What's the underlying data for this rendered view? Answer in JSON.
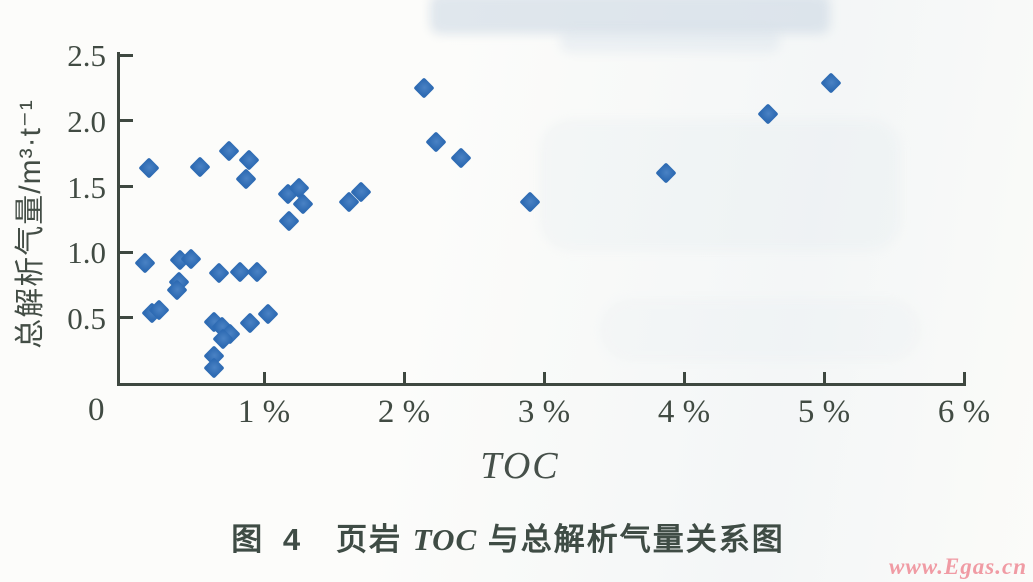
{
  "figure": {
    "caption": {
      "fig_label": "图 4",
      "title_pre": "页岩 ",
      "title_italic": "TOC",
      "title_post": " 与总解析气量关系图"
    },
    "watermark": "www.Egas.cn"
  },
  "chart_data": {
    "type": "scatter",
    "title": "页岩 TOC 与总解析气量关系图",
    "xlabel": "TOC",
    "ylabel": "总解析气量/m³·t⁻¹",
    "xlim": [
      0,
      6
    ],
    "ylim": [
      0,
      2.5
    ],
    "grid": false,
    "legend": "none",
    "origin_label": "0",
    "x_ticks": [
      1,
      2,
      3,
      4,
      5,
      6
    ],
    "x_tick_labels": [
      "1 %",
      "2 %",
      "3 %",
      "4 %",
      "5 %",
      "6 %"
    ],
    "y_ticks": [
      0.5,
      1.0,
      1.5,
      2.0,
      2.5
    ],
    "y_tick_labels": [
      "0.5",
      "1.0",
      "1.5",
      "2.0",
      "2.5"
    ],
    "marker": "diamond",
    "marker_color": "#2e6bb3",
    "axis_color": "#3e4840",
    "points": [
      [
        0.18,
        1.64
      ],
      [
        0.54,
        1.65
      ],
      [
        0.75,
        1.77
      ],
      [
        0.89,
        1.7
      ],
      [
        0.87,
        1.56
      ],
      [
        0.15,
        0.92
      ],
      [
        0.4,
        0.94
      ],
      [
        0.48,
        0.95
      ],
      [
        0.39,
        0.77
      ],
      [
        0.38,
        0.71
      ],
      [
        0.68,
        0.84
      ],
      [
        0.83,
        0.85
      ],
      [
        0.95,
        0.85
      ],
      [
        0.2,
        0.54
      ],
      [
        0.25,
        0.56
      ],
      [
        0.64,
        0.47
      ],
      [
        0.7,
        0.43
      ],
      [
        0.76,
        0.38
      ],
      [
        0.71,
        0.34
      ],
      [
        0.9,
        0.46
      ],
      [
        1.03,
        0.53
      ],
      [
        0.64,
        0.21
      ],
      [
        0.64,
        0.12
      ],
      [
        1.17,
        1.44
      ],
      [
        1.25,
        1.49
      ],
      [
        1.28,
        1.37
      ],
      [
        1.18,
        1.24
      ],
      [
        1.61,
        1.38
      ],
      [
        1.69,
        1.46
      ],
      [
        2.14,
        2.25
      ],
      [
        2.23,
        1.84
      ],
      [
        2.41,
        1.72
      ],
      [
        2.9,
        1.38
      ],
      [
        3.87,
        1.6
      ],
      [
        4.6,
        2.05
      ],
      [
        5.05,
        2.29
      ]
    ]
  }
}
